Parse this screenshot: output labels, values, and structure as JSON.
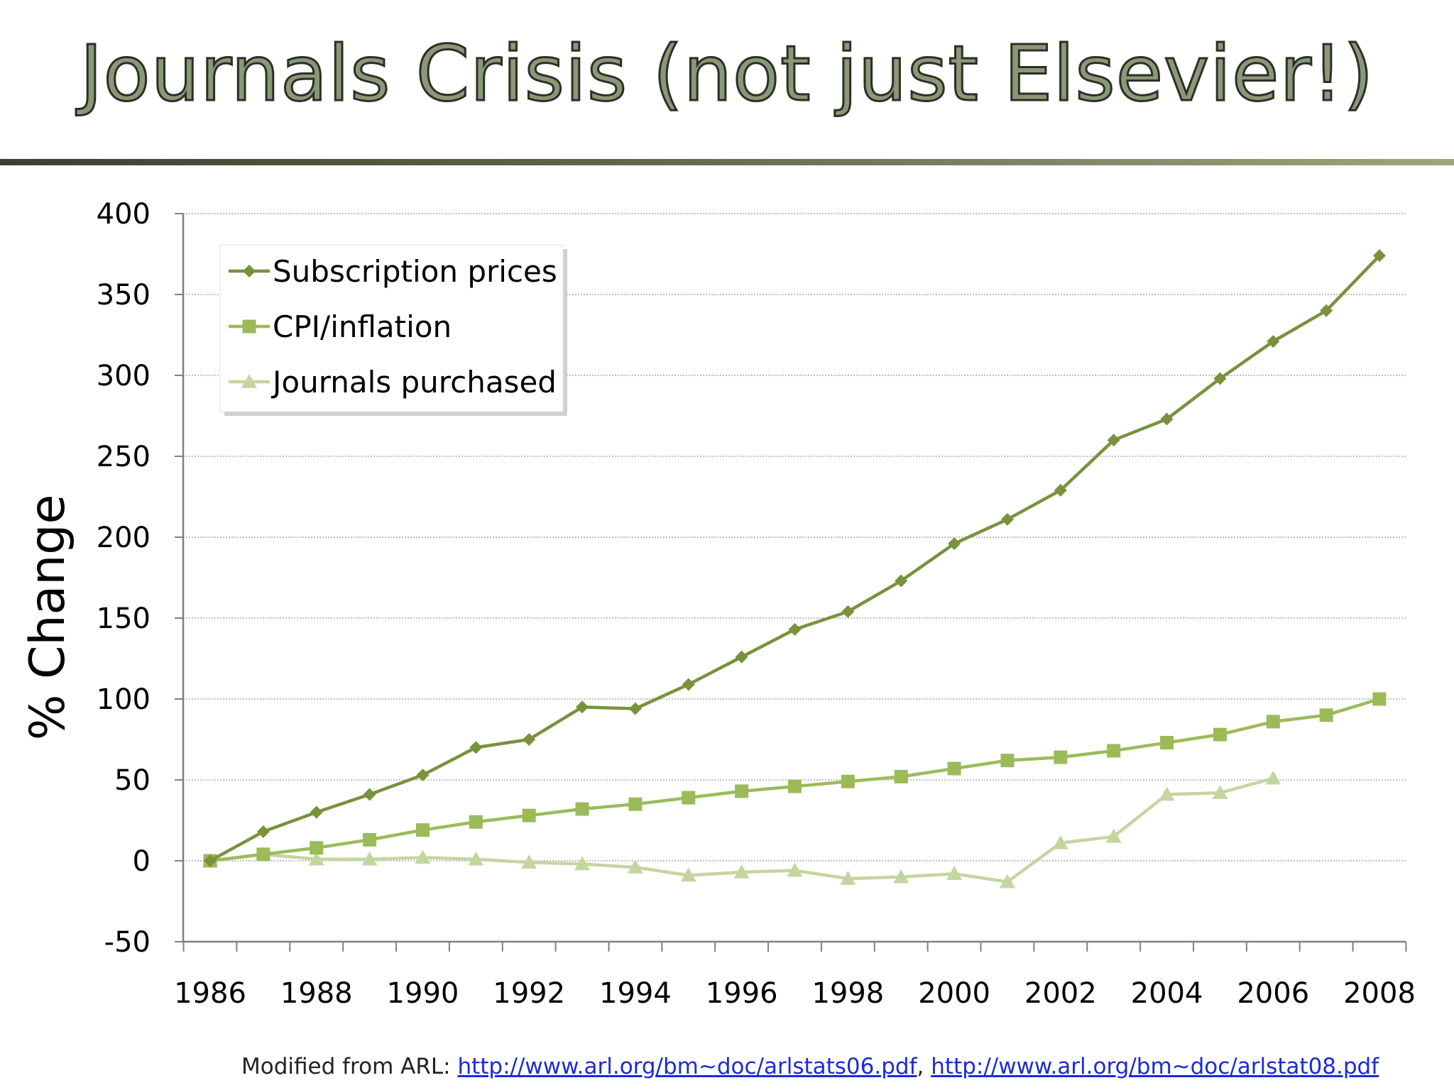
{
  "slide": {
    "title": "Journals Crisis (not just Elsevier!)",
    "footer": {
      "prefix": "Modified from ARL: ",
      "link1": "http://www.arl.org/bm~doc/arlstats06.pdf",
      "separator": ", ",
      "link2": "http://www.arl.org/bm~doc/arlstat08.pdf"
    }
  },
  "chart_data": {
    "type": "line",
    "title": "",
    "xlabel": "",
    "ylabel": "% Change",
    "x": [
      1986,
      1987,
      1988,
      1989,
      1990,
      1991,
      1992,
      1993,
      1994,
      1995,
      1996,
      1997,
      1998,
      1999,
      2000,
      2001,
      2002,
      2003,
      2004,
      2005,
      2006,
      2007,
      2008
    ],
    "x_tick_labels": [
      "1986",
      "1988",
      "1990",
      "1992",
      "1994",
      "1996",
      "1998",
      "2000",
      "2002",
      "2004",
      "2006",
      "2008"
    ],
    "xlim": [
      1986,
      2008
    ],
    "ylim": [
      -50,
      400
    ],
    "y_ticks": [
      -50,
      0,
      50,
      100,
      150,
      200,
      250,
      300,
      350,
      400
    ],
    "y_grid": true,
    "legend_position": "top-left",
    "series": [
      {
        "name": "Subscription prices",
        "marker": "diamond",
        "color": "#77933c",
        "values": [
          0,
          18,
          30,
          41,
          53,
          70,
          75,
          95,
          94,
          109,
          126,
          143,
          154,
          173,
          196,
          211,
          229,
          260,
          273,
          298,
          321,
          340,
          374
        ]
      },
      {
        "name": "CPI/inflation",
        "marker": "square",
        "color": "#9bbb59",
        "values": [
          0,
          4,
          8,
          13,
          19,
          24,
          28,
          32,
          35,
          39,
          43,
          46,
          49,
          52,
          57,
          62,
          64,
          68,
          73,
          78,
          86,
          90,
          100
        ]
      },
      {
        "name": "Journals purchased",
        "marker": "triangle",
        "color": "#c4d6a0",
        "values": [
          0,
          4,
          1,
          1,
          2,
          1,
          -1,
          -2,
          -4,
          -9,
          -7,
          -6,
          -11,
          -10,
          -8,
          -13,
          11,
          15,
          41,
          42,
          51,
          null,
          null
        ]
      }
    ]
  }
}
